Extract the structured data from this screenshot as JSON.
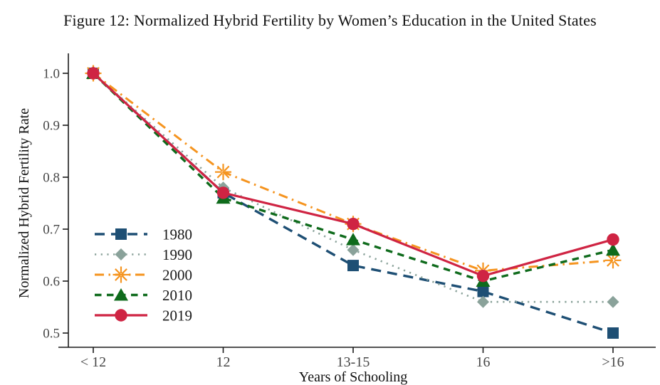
{
  "figure_label": "Figure 12",
  "chart_data": {
    "type": "line",
    "title": "Figure 12: Normalized Hybrid Fertility by Women’s Education in the United States",
    "xlabel": "Years of Schooling",
    "ylabel": "Normalized Hybrid Fertility Rate",
    "categories": [
      "< 12",
      "12",
      "13-15",
      "16",
      ">16"
    ],
    "series": [
      {
        "name": "1980",
        "color": "#1e4f74",
        "line_style": "longdash",
        "marker": "square",
        "values": [
          1.0,
          0.77,
          0.63,
          0.58,
          0.5
        ]
      },
      {
        "name": "1990",
        "color": "#8aa29a",
        "line_style": "dot",
        "marker": "diamond",
        "values": [
          1.0,
          0.78,
          0.66,
          0.56,
          0.56
        ]
      },
      {
        "name": "2000",
        "color": "#f5941f",
        "line_style": "dashdot",
        "marker": "asterisk",
        "values": [
          1.0,
          0.81,
          0.71,
          0.62,
          0.64
        ]
      },
      {
        "name": "2010",
        "color": "#0f6b1c",
        "line_style": "dash",
        "marker": "triangle",
        "values": [
          1.0,
          0.76,
          0.68,
          0.6,
          0.66
        ]
      },
      {
        "name": "2019",
        "color": "#cf2443",
        "line_style": "solid",
        "marker": "circle",
        "values": [
          1.0,
          0.77,
          0.71,
          0.61,
          0.68
        ]
      }
    ],
    "ylim": [
      0.5,
      1.0
    ],
    "yticks": [
      1.0,
      0.9,
      0.8,
      0.7,
      0.6,
      0.5
    ],
    "grid": false,
    "legend_position": "inside-left-middle",
    "legend_entries": [
      "1980",
      "1990",
      "2000",
      "2010",
      "2019"
    ]
  },
  "colors": {
    "background": "#ffffff",
    "axis_line": "#1b1b1b",
    "tick_label": "#474747",
    "title_text": "#101010",
    "legend_text": "#1a1a1a"
  }
}
